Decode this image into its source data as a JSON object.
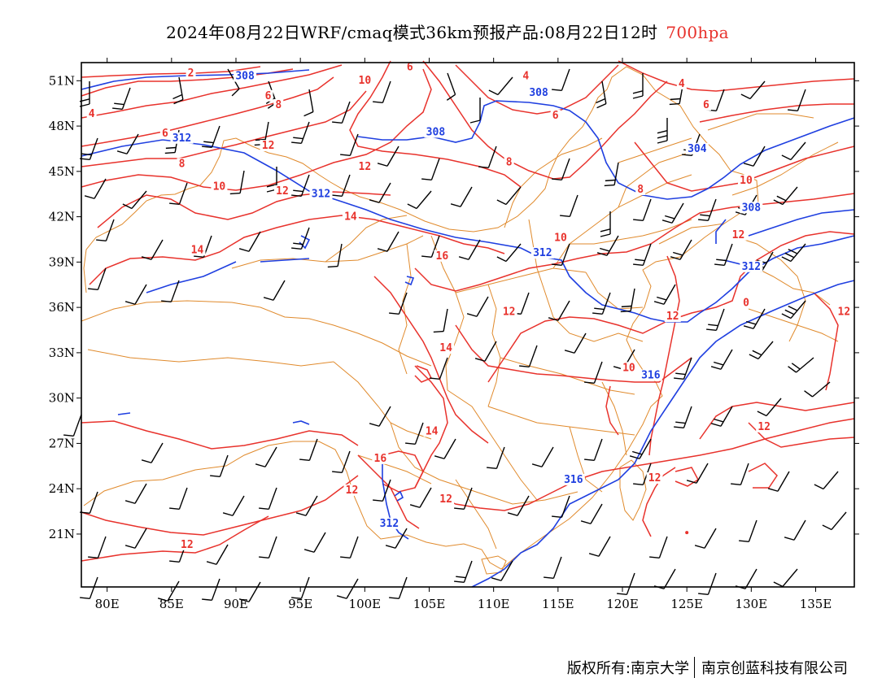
{
  "header": {
    "title": "2024年08月22日WRF/cmaq模式36km预报产品:08月22日12时",
    "level": "700hpa",
    "level_color": "#e8322c"
  },
  "footer": {
    "copyright": "版权所有:南京大学",
    "company": "南京创蓝科技有限公司"
  },
  "map": {
    "lat_ticks": [
      "51N",
      "48N",
      "45N",
      "42N",
      "39N",
      "36N",
      "33N",
      "30N",
      "27N",
      "24N",
      "21N"
    ],
    "lon_ticks": [
      "80E",
      "85E",
      "90E",
      "95E",
      "100E",
      "105E",
      "110E",
      "115E",
      "120E",
      "125E",
      "130E",
      "135E"
    ],
    "colors": {
      "temperature": "#e8322c",
      "height": "#1f3fe0",
      "boundary": "#e08a2c",
      "wind": "#000000"
    },
    "temperature_labels": [
      {
        "text": "2",
        "lon": 86.5,
        "lat": 51.4
      },
      {
        "text": "4",
        "lon": 78.8,
        "lat": 48.7
      },
      {
        "text": "6",
        "lon": 84.5,
        "lat": 47.4
      },
      {
        "text": "6",
        "lon": 92.5,
        "lat": 49.9
      },
      {
        "text": "8",
        "lon": 93.3,
        "lat": 49.3
      },
      {
        "text": "10",
        "lon": 100.0,
        "lat": 50.9
      },
      {
        "text": "6",
        "lon": 103.5,
        "lat": 51.8
      },
      {
        "text": "8",
        "lon": 85.8,
        "lat": 45.4
      },
      {
        "text": "10",
        "lon": 88.7,
        "lat": 43.9
      },
      {
        "text": "12",
        "lon": 92.5,
        "lat": 46.6
      },
      {
        "text": "12",
        "lon": 100.0,
        "lat": 45.2
      },
      {
        "text": "12",
        "lon": 93.6,
        "lat": 43.6
      },
      {
        "text": "14",
        "lon": 98.9,
        "lat": 41.9
      },
      {
        "text": "14",
        "lon": 87.0,
        "lat": 39.7
      },
      {
        "text": "16",
        "lon": 106.0,
        "lat": 39.3
      },
      {
        "text": "4",
        "lon": 112.5,
        "lat": 51.2
      },
      {
        "text": "6",
        "lon": 114.8,
        "lat": 48.6
      },
      {
        "text": "8",
        "lon": 111.2,
        "lat": 45.5
      },
      {
        "text": "4",
        "lon": 124.6,
        "lat": 50.7
      },
      {
        "text": "6",
        "lon": 126.5,
        "lat": 49.3
      },
      {
        "text": "8",
        "lon": 121.4,
        "lat": 43.7
      },
      {
        "text": "10",
        "lon": 115.2,
        "lat": 40.5
      },
      {
        "text": "10",
        "lon": 129.6,
        "lat": 44.3
      },
      {
        "text": "12",
        "lon": 129.0,
        "lat": 40.7
      },
      {
        "text": "12",
        "lon": 111.2,
        "lat": 35.6
      },
      {
        "text": "12",
        "lon": 123.9,
        "lat": 35.3
      },
      {
        "text": "0",
        "lon": 129.6,
        "lat": 36.2
      },
      {
        "text": "12",
        "lon": 137.2,
        "lat": 35.6
      },
      {
        "text": "14",
        "lon": 106.3,
        "lat": 33.2
      },
      {
        "text": "10",
        "lon": 120.5,
        "lat": 31.9
      },
      {
        "text": "14",
        "lon": 105.2,
        "lat": 27.7
      },
      {
        "text": "16",
        "lon": 101.2,
        "lat": 25.9
      },
      {
        "text": "12",
        "lon": 99.0,
        "lat": 23.8
      },
      {
        "text": "12",
        "lon": 106.3,
        "lat": 23.2
      },
      {
        "text": "12",
        "lon": 122.5,
        "lat": 24.6
      },
      {
        "text": "12",
        "lon": 131.0,
        "lat": 28.0
      },
      {
        "text": "12",
        "lon": 86.2,
        "lat": 20.2
      }
    ],
    "height_labels": [
      {
        "text": "308",
        "lon": 90.7,
        "lat": 51.2
      },
      {
        "text": "312",
        "lon": 85.8,
        "lat": 47.1
      },
      {
        "text": "308",
        "lon": 113.5,
        "lat": 50.1
      },
      {
        "text": "308",
        "lon": 105.5,
        "lat": 47.5
      },
      {
        "text": "312",
        "lon": 96.6,
        "lat": 43.4
      },
      {
        "text": "304",
        "lon": 125.8,
        "lat": 46.4
      },
      {
        "text": "308",
        "lon": 130.0,
        "lat": 42.5
      },
      {
        "text": "312",
        "lon": 113.8,
        "lat": 39.5
      },
      {
        "text": "312",
        "lon": 130.0,
        "lat": 38.6
      },
      {
        "text": "316",
        "lon": 122.2,
        "lat": 31.4
      },
      {
        "text": "316",
        "lon": 116.2,
        "lat": 24.5
      },
      {
        "text": "312",
        "lon": 101.9,
        "lat": 21.6
      }
    ]
  }
}
